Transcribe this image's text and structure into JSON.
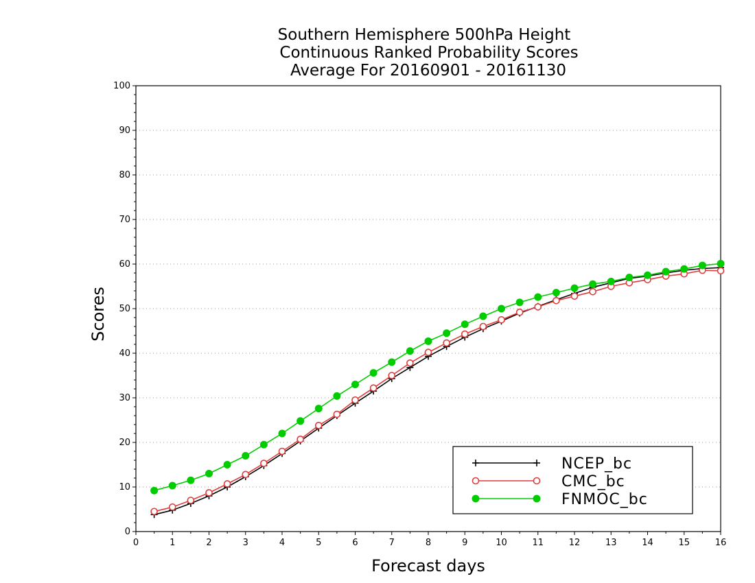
{
  "chart_data": {
    "type": "line",
    "title": [
      "Southern Hemisphere 500hPa Height",
      "Continuous Ranked Probability Scores",
      "Average For 20160901 - 20161130"
    ],
    "xlabel": "Forecast days",
    "ylabel": "Scores",
    "xlim": [
      0,
      16
    ],
    "ylim": [
      0,
      100
    ],
    "xticks": [
      "0",
      "1",
      "2",
      "3",
      "4",
      "5",
      "6",
      "7",
      "8",
      "9",
      "10",
      "11",
      "12",
      "13",
      "14",
      "15",
      "16"
    ],
    "yticks": [
      "0",
      "10",
      "20",
      "30",
      "40",
      "50",
      "60",
      "70",
      "80",
      "90",
      "100"
    ],
    "grid": "horizontal dotted",
    "legend_position": "bottom-right",
    "x": [
      0.5,
      1,
      1.5,
      2,
      2.5,
      3,
      3.5,
      4,
      4.5,
      5,
      5.5,
      6,
      6.5,
      7,
      7.5,
      8,
      8.5,
      9,
      9.5,
      10,
      10.5,
      11,
      11.5,
      12,
      12.5,
      13,
      13.5,
      14,
      14.5,
      15,
      15.5,
      16
    ],
    "series": [
      {
        "name": "NCEP_bc",
        "color": "#000000",
        "marker": "plus",
        "values": [
          3.8,
          4.8,
          6.3,
          8.0,
          10.0,
          12.3,
          14.8,
          17.5,
          20.3,
          23.2,
          26.0,
          28.8,
          31.5,
          34.3,
          36.8,
          39.3,
          41.5,
          43.6,
          45.5,
          47.2,
          49.0,
          50.5,
          52.0,
          53.4,
          54.8,
          55.8,
          56.8,
          57.3,
          58.0,
          58.6,
          59.0,
          59.2
        ]
      },
      {
        "name": "CMC_bc",
        "color": "#e03c3c",
        "marker": "open-circle",
        "values": [
          4.5,
          5.5,
          7.0,
          8.7,
          10.7,
          12.8,
          15.3,
          18.0,
          20.7,
          23.8,
          26.3,
          29.5,
          32.2,
          35.0,
          37.8,
          40.2,
          42.3,
          44.3,
          46.0,
          47.5,
          49.2,
          50.4,
          51.8,
          52.8,
          53.8,
          55.0,
          55.8,
          56.5,
          57.3,
          57.8,
          58.6,
          58.5
        ]
      },
      {
        "name": "FNMOC_bc",
        "color": "#00cc00",
        "marker": "filled-circle",
        "values": [
          9.2,
          10.3,
          11.5,
          13.0,
          15.0,
          17.0,
          19.5,
          22.0,
          24.8,
          27.6,
          30.4,
          33.0,
          35.6,
          38.0,
          40.5,
          42.7,
          44.5,
          46.5,
          48.3,
          50.0,
          51.4,
          52.6,
          53.6,
          54.6,
          55.5,
          56.1,
          57.0,
          57.5,
          58.3,
          58.9,
          59.7,
          60.1
        ]
      }
    ]
  }
}
